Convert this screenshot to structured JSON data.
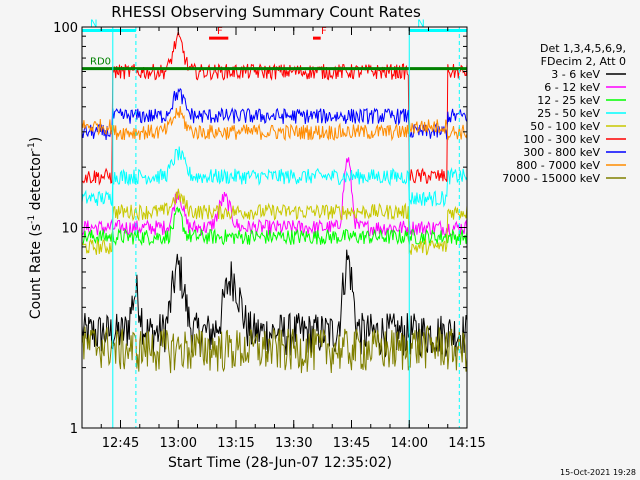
{
  "chart_data": {
    "type": "line",
    "title": "RHESSI Observing Summary Count Rates",
    "xlabel": "Start Time (28-Jun-07 12:35:02)",
    "ylabel": "Count Rate (s⁻¹ detector⁻¹)",
    "ylabel_main": "Count Rate (s",
    "ylabel_sup1": "-1",
    "ylabel_mid": " detector",
    "ylabel_sup2": "-1",
    "ylabel_end": ")",
    "yscale": "log",
    "ylim": [
      1,
      100
    ],
    "xlim_minutes": [
      0,
      100
    ],
    "xticks": [
      {
        "min": 10,
        "label": "12:45"
      },
      {
        "min": 25,
        "label": "13:00"
      },
      {
        "min": 40,
        "label": "13:15"
      },
      {
        "min": 55,
        "label": "13:30"
      },
      {
        "min": 70,
        "label": "13:45"
      },
      {
        "min": 85,
        "label": "14:00"
      },
      {
        "min": 100,
        "label": "14:15"
      }
    ],
    "yticks": [
      {
        "value": 1,
        "label": "1"
      },
      {
        "value": 10,
        "label": "10"
      },
      {
        "value": 100,
        "label": "100"
      }
    ],
    "legend_placement": "right",
    "legend_header": [
      "Det 1,3,4,5,6,9,",
      "FDecim 2, Att 0"
    ],
    "series": [
      {
        "name": "3 - 6 keV",
        "color": "#000000",
        "baseline": 3.0,
        "pre": 3.0,
        "flares": [
          [
            14,
            1.6,
            1.5
          ],
          [
            25,
            2.1,
            2.0
          ],
          [
            39,
            1.9,
            2.5
          ],
          [
            69,
            2.3,
            1.5
          ]
        ]
      },
      {
        "name": "6 - 12 keV",
        "color": "#ff00ff",
        "baseline": 10.0,
        "pre": 10.0,
        "flares": [
          [
            25,
            1.5,
            1.5
          ],
          [
            37,
            1.4,
            2.0
          ],
          [
            69,
            2.2,
            1.2
          ]
        ]
      },
      {
        "name": "12 - 25 keV",
        "color": "#00ff00",
        "baseline": 9.0,
        "pre": 9.0,
        "flares": [
          [
            25,
            1.3,
            1.5
          ]
        ]
      },
      {
        "name": "25 - 50 keV",
        "color": "#00ffff",
        "baseline": 18.0,
        "pre": 14.0,
        "flares": [
          [
            25,
            1.3,
            2.0
          ]
        ]
      },
      {
        "name": "50 - 100 keV",
        "color": "#c8c800",
        "baseline": 12.0,
        "pre": 8.0,
        "flares": [
          [
            25,
            1.2,
            2.0
          ]
        ]
      },
      {
        "name": "100 - 300 keV",
        "color": "#ff0000",
        "baseline": 60.0,
        "pre": 18.0,
        "flares": [
          [
            25,
            1.45,
            1.8
          ]
        ]
      },
      {
        "name": "300 - 800 keV",
        "color": "#0000ff",
        "baseline": 36.0,
        "pre": 30.0,
        "flares": [
          [
            25,
            1.3,
            2.0
          ]
        ]
      },
      {
        "name": "800 - 7000 keV",
        "color": "#ff8c00",
        "baseline": 30.0,
        "pre": 32.0,
        "flares": [
          [
            25,
            1.25,
            2.0
          ]
        ]
      },
      {
        "name": "7000 - 15000 keV",
        "color": "#808000",
        "baseline": 2.5,
        "pre": 2.6,
        "flares": []
      }
    ],
    "gaps": [
      [
        0,
        8
      ],
      [
        85,
        95
      ]
    ],
    "status_bars": [
      {
        "label": "RD0",
        "color": "#008000",
        "value": 62,
        "start": 0,
        "end": 100
      },
      {
        "label": "N",
        "color": "#00ffff",
        "value": 96,
        "start": 0,
        "end": 14
      },
      {
        "label": "N",
        "color": "#00ffff",
        "value": 96,
        "start": 85,
        "end": 100
      },
      {
        "label": "F",
        "color": "#ff0000",
        "value": 88,
        "start": 33,
        "end": 38
      },
      {
        "label": "F",
        "color": "#ff0000",
        "value": 88,
        "start": 60,
        "end": 62
      }
    ],
    "vlines": [
      {
        "min": 8,
        "color": "#00ffff",
        "style": "solid"
      },
      {
        "min": 14,
        "color": "#00ffff",
        "style": "dashed"
      },
      {
        "min": 85,
        "color": "#00ffff",
        "style": "solid"
      },
      {
        "min": 98,
        "color": "#00ffff",
        "style": "dashed"
      }
    ]
  },
  "footer_timestamp": "15-Oct-2021 19:28"
}
